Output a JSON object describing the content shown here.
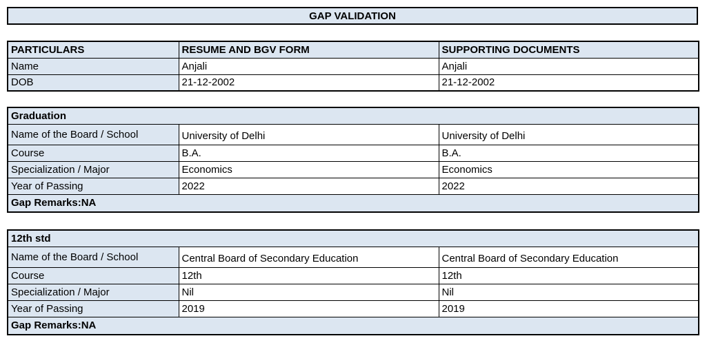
{
  "title": "GAP VALIDATION",
  "colors": {
    "header_fill": "#dce6f1",
    "border_color": "#000000"
  },
  "particulars_table": {
    "headers": [
      "PARTICULARS",
      "RESUME AND BGV FORM",
      "SUPPORTING DOCUMENTS"
    ],
    "rows": [
      {
        "label": "Name",
        "resume": "Anjali",
        "supporting": "Anjali"
      },
      {
        "label": "DOB",
        "resume": "21-12-2002",
        "supporting": "21-12-2002"
      }
    ]
  },
  "sections": [
    {
      "title": "Graduation",
      "rows": [
        {
          "label": "Name of the Board / School",
          "resume": "University of Delhi",
          "supporting": "University of Delhi"
        },
        {
          "label": "Course",
          "resume": "B.A.",
          "supporting": "B.A."
        },
        {
          "label": "Specialization / Major",
          "resume": "Economics",
          "supporting": "Economics"
        },
        {
          "label": "Year of Passing",
          "resume": "2022",
          "supporting": "2022"
        }
      ],
      "gap_remarks": "Gap Remarks:NA"
    },
    {
      "title": "12th std",
      "rows": [
        {
          "label": "Name of the Board / School",
          "resume": "Central Board of Secondary Education",
          "supporting": "Central Board of Secondary Education"
        },
        {
          "label": "Course",
          "resume": "12th",
          "supporting": "12th"
        },
        {
          "label": "Specialization / Major",
          "resume": "Nil",
          "supporting": "Nil"
        },
        {
          "label": "Year of Passing",
          "resume": "2019",
          "supporting": "2019"
        }
      ],
      "gap_remarks": "Gap Remarks:NA"
    }
  ]
}
